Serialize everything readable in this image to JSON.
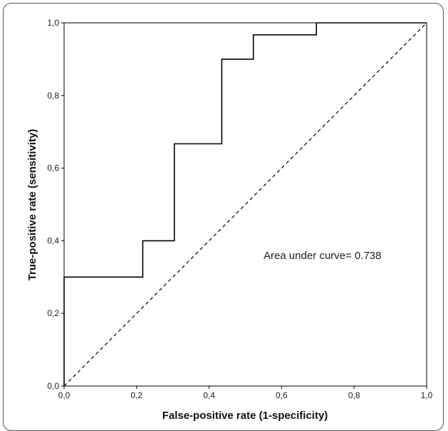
{
  "chart_data": {
    "type": "line",
    "title": "",
    "xlabel": "False-positive rate (1-specificity)",
    "ylabel": "True-positive rate (sensitivity)",
    "xlim": [
      0,
      1
    ],
    "ylim": [
      0,
      1
    ],
    "x_ticks": [
      {
        "value": 0.0,
        "label": "0,0"
      },
      {
        "value": 0.2,
        "label": "0,2"
      },
      {
        "value": 0.4,
        "label": "0,4"
      },
      {
        "value": 0.6,
        "label": "0,6"
      },
      {
        "value": 0.8,
        "label": "0,8"
      },
      {
        "value": 1.0,
        "label": "1,0"
      }
    ],
    "y_ticks": [
      {
        "value": 0.0,
        "label": "0,0"
      },
      {
        "value": 0.2,
        "label": "0,2"
      },
      {
        "value": 0.4,
        "label": "0,4"
      },
      {
        "value": 0.6,
        "label": "0,6"
      },
      {
        "value": 0.8,
        "label": "0,8"
      },
      {
        "value": 1.0,
        "label": "1,0"
      }
    ],
    "grid": false,
    "series": [
      {
        "style": "solid",
        "color": "#000000",
        "step": true,
        "points": [
          {
            "x": 0.0,
            "y": 0.0
          },
          {
            "x": 0.0,
            "y": 0.3
          },
          {
            "x": 0.217,
            "y": 0.3
          },
          {
            "x": 0.217,
            "y": 0.4
          },
          {
            "x": 0.304,
            "y": 0.4
          },
          {
            "x": 0.304,
            "y": 0.667
          },
          {
            "x": 0.435,
            "y": 0.667
          },
          {
            "x": 0.435,
            "y": 0.9
          },
          {
            "x": 0.522,
            "y": 0.9
          },
          {
            "x": 0.522,
            "y": 0.967
          },
          {
            "x": 0.696,
            "y": 0.967
          },
          {
            "x": 0.696,
            "y": 1.0
          },
          {
            "x": 1.0,
            "y": 1.0
          }
        ]
      },
      {
        "style": "dashed",
        "color": "#000000",
        "step": false,
        "points": [
          {
            "x": 0.0,
            "y": 0.0
          },
          {
            "x": 1.0,
            "y": 1.0
          }
        ]
      }
    ],
    "annotations": [
      {
        "text": "Area under curve= 0.738",
        "x": 0.55,
        "y": 0.35
      }
    ]
  }
}
